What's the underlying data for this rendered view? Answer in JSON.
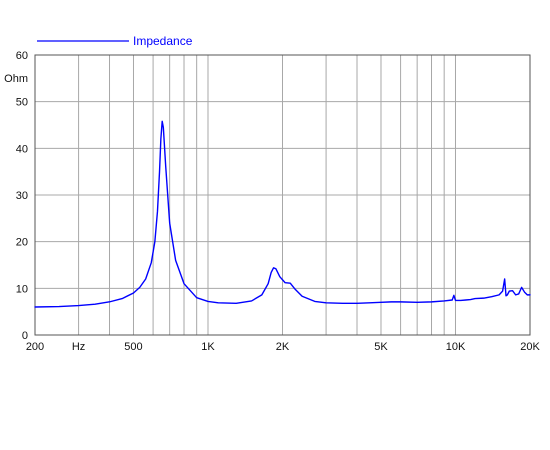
{
  "chart_data": {
    "type": "line",
    "title": "",
    "x_scale": "log",
    "xlim": [
      200,
      20000
    ],
    "ylim": [
      0,
      60
    ],
    "xlabel": "Hz",
    "ylabel": "Ohm",
    "grid": true,
    "legend_position": "top-left",
    "x_tick_labels": [
      {
        "value": 200,
        "label": "200"
      },
      {
        "value": 300,
        "label": "Hz"
      },
      {
        "value": 500,
        "label": "500"
      },
      {
        "value": 1000,
        "label": "1K"
      },
      {
        "value": 2000,
        "label": "2K"
      },
      {
        "value": 5000,
        "label": "5K"
      },
      {
        "value": 10000,
        "label": "10K"
      },
      {
        "value": 20000,
        "label": "20K"
      }
    ],
    "y_tick_labels": [
      {
        "value": 0,
        "label": "0"
      },
      {
        "value": 10,
        "label": "10"
      },
      {
        "value": 20,
        "label": "20"
      },
      {
        "value": 30,
        "label": "30"
      },
      {
        "value": 40,
        "label": "40"
      },
      {
        "value": 50,
        "label": "50"
      },
      {
        "value": 60,
        "label": "60"
      }
    ],
    "y_unit_label": "Ohm",
    "series": [
      {
        "name": "Impedance",
        "color": "#0000ff",
        "x": [
          200,
          250,
          300,
          350,
          400,
          450,
          500,
          530,
          560,
          590,
          610,
          625,
          637,
          645,
          653,
          660,
          675,
          700,
          740,
          800,
          900,
          1000,
          1100,
          1300,
          1500,
          1650,
          1750,
          1800,
          1840,
          1880,
          1950,
          2050,
          2150,
          2250,
          2400,
          2700,
          3000,
          3500,
          4000,
          4500,
          5000,
          5500,
          6000,
          7000,
          8000,
          9000,
          9700,
          9850,
          10000,
          10500,
          11000,
          11500,
          12000,
          13000,
          14000,
          15000,
          15500,
          15800,
          16000,
          16200,
          16500,
          17000,
          17500,
          18000,
          18500,
          19000,
          19500,
          20000
        ],
        "y": [
          6.0,
          6.1,
          6.3,
          6.6,
          7.1,
          7.8,
          9.0,
          10.2,
          12.0,
          15.5,
          20.0,
          26.5,
          35.0,
          42.0,
          45.8,
          44.5,
          36.0,
          24.0,
          16.0,
          11.0,
          8.0,
          7.2,
          6.9,
          6.8,
          7.3,
          8.6,
          11.0,
          13.4,
          14.4,
          14.2,
          12.5,
          11.2,
          11.1,
          9.8,
          8.3,
          7.2,
          6.9,
          6.8,
          6.8,
          6.9,
          7.0,
          7.1,
          7.1,
          7.0,
          7.1,
          7.3,
          7.5,
          8.5,
          7.4,
          7.4,
          7.5,
          7.6,
          7.8,
          7.9,
          8.2,
          8.6,
          9.4,
          12.0,
          8.4,
          8.6,
          9.4,
          9.5,
          8.6,
          8.8,
          10.2,
          9.2,
          8.6,
          8.6
        ]
      }
    ]
  }
}
